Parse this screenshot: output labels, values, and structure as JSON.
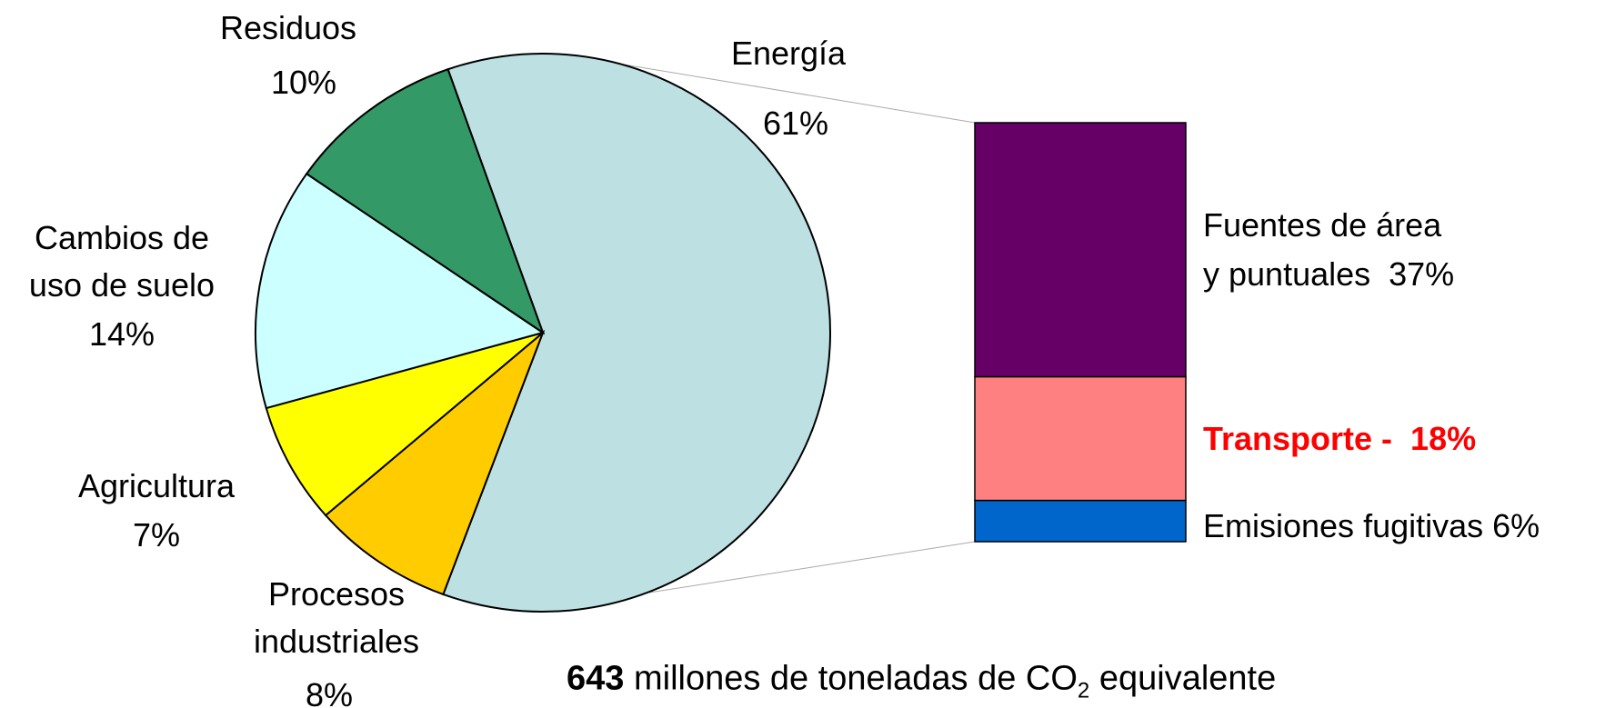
{
  "chart_data": [
    {
      "type": "pie",
      "categories": [
        "Energía",
        "Procesos\nindustriales",
        "Agricultura",
        "Cambios de\nuso de suelo",
        "Residuos"
      ],
      "values": [
        61,
        8,
        7,
        14,
        10
      ],
      "value_labels": [
        "61%",
        "8%",
        "7%",
        "14%",
        "10%"
      ],
      "colors": [
        "#bde0e3",
        "#ffcc00",
        "#ffff00",
        "#ccffff",
        "#339966"
      ]
    },
    {
      "type": "stacked-bar",
      "values": [
        37,
        18,
        6
      ],
      "value_labels": [
        "Fuentes de área\ny puntuales  37%",
        "Transporte -  18%",
        "Emisiones fugitivas 6%"
      ],
      "colors": [
        "#660066",
        "#ff8080",
        "#0066cc"
      ],
      "label_colors": [
        "#000000",
        "#ff0000",
        "#000000"
      ]
    }
  ],
  "footnote": {
    "total": 643,
    "text": "millones de toneladas de CO",
    "subscript": "2",
    "text_after": "equivalente"
  }
}
